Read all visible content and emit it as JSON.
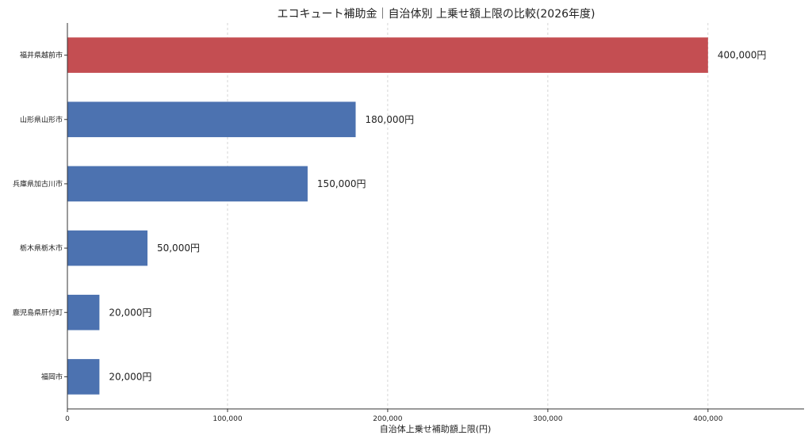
{
  "chart_data": {
    "type": "bar",
    "orientation": "horizontal",
    "title": "エコキュート補助金｜自治体別 上乗せ額上限の比較(2026年度)",
    "xlabel": "自治体上乗せ補助額上限(円)",
    "ylabel": "",
    "categories": [
      "福井県越前市",
      "山形県山形市",
      "兵庫県加古川市",
      "栃木県栃木市",
      "鹿児島県肝付町",
      "福岡市"
    ],
    "values": [
      400000,
      180000,
      150000,
      50000,
      20000,
      20000
    ],
    "value_labels": [
      "400,000円",
      "180,000円",
      "150,000円",
      "50,000円",
      "20,000円",
      "20,000円"
    ],
    "highlight_index": 0,
    "colors": {
      "highlight": "#c44e52",
      "default": "#4c72b0"
    },
    "xlim": [
      0,
      460000
    ],
    "xticks": [
      0,
      100000,
      200000,
      300000,
      400000
    ],
    "xtick_labels": [
      "0",
      "100,000",
      "200,000",
      "300,000",
      "400,000"
    ],
    "grid": "x-dashed",
    "legend": "none"
  }
}
